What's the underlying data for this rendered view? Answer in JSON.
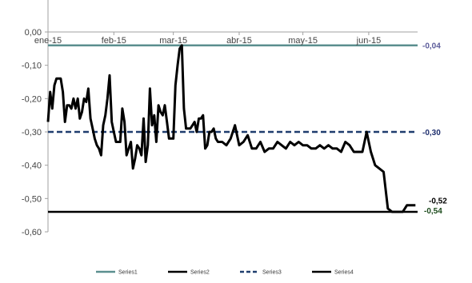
{
  "chart_data": {
    "type": "line",
    "ylim": [
      -0.6,
      0.0
    ],
    "y_ticks": [
      "0,00",
      "-0,10",
      "-0,20",
      "-0,30",
      "-0,40",
      "-0,50",
      "-0,60"
    ],
    "x_ticks": [
      "ene-15",
      "feb-15",
      "mar-15",
      "abr-15",
      "may-15",
      "jun-15"
    ],
    "xlim": [
      0,
      174
    ],
    "grid": false,
    "legend_position": "bottom",
    "series": [
      {
        "name": "Series1",
        "color": "#5b8f8f",
        "style": "solid",
        "x": [
          0,
          174
        ],
        "y": [
          -0.04,
          -0.04
        ]
      },
      {
        "name": "Series2",
        "color": "#000000",
        "style": "solid",
        "x": [
          0,
          174
        ],
        "y": [
          -0.54,
          -0.54
        ]
      },
      {
        "name": "Series3",
        "color": "#1f3d6e",
        "style": "dashed",
        "x": [
          0,
          174
        ],
        "y": [
          -0.3,
          -0.3
        ]
      },
      {
        "name": "Series4",
        "color": "#000000",
        "style": "solid",
        "x": [
          0,
          1,
          2,
          3,
          4,
          5,
          6,
          7,
          8,
          9,
          10,
          11,
          12,
          13,
          14,
          15,
          16,
          17,
          18,
          19,
          20,
          21,
          22,
          23,
          24,
          25,
          26,
          27,
          28,
          29,
          30,
          31,
          32,
          33,
          34,
          35,
          36,
          37,
          38,
          39,
          40,
          41,
          42,
          43,
          44,
          45,
          46,
          47,
          48,
          49,
          50,
          51,
          52,
          53,
          54,
          55,
          56,
          57,
          58,
          59,
          60,
          61,
          62,
          63,
          64,
          65,
          66,
          67,
          68,
          69,
          70,
          71,
          72,
          73,
          74,
          75,
          76,
          77,
          78,
          79,
          80,
          82,
          84,
          86,
          88,
          90,
          92,
          94,
          96,
          98,
          100,
          102,
          104,
          106,
          108,
          110,
          112,
          114,
          116,
          118,
          120,
          122,
          124,
          126,
          128,
          130,
          132,
          134,
          136,
          138,
          140,
          142,
          144,
          146,
          148,
          150,
          152,
          154,
          156,
          158,
          160,
          162,
          164,
          165,
          166,
          167,
          168,
          169,
          170,
          171,
          172,
          173
        ],
        "y": [
          -0.27,
          -0.18,
          -0.23,
          -0.16,
          -0.14,
          -0.14,
          -0.14,
          -0.18,
          -0.27,
          -0.22,
          -0.22,
          -0.23,
          -0.2,
          -0.23,
          -0.2,
          -0.26,
          -0.24,
          -0.2,
          -0.21,
          -0.17,
          -0.26,
          -0.29,
          -0.32,
          -0.34,
          -0.35,
          -0.37,
          -0.28,
          -0.25,
          -0.2,
          -0.13,
          -0.27,
          -0.3,
          -0.33,
          -0.33,
          -0.33,
          -0.23,
          -0.27,
          -0.37,
          -0.35,
          -0.33,
          -0.41,
          -0.38,
          -0.34,
          -0.35,
          -0.37,
          -0.26,
          -0.39,
          -0.34,
          -0.17,
          -0.28,
          -0.25,
          -0.33,
          -0.22,
          -0.24,
          -0.25,
          -0.22,
          -0.27,
          -0.32,
          -0.32,
          -0.32,
          -0.16,
          -0.1,
          -0.05,
          -0.04,
          -0.23,
          -0.29,
          -0.29,
          -0.29,
          -0.28,
          -0.27,
          -0.3,
          -0.26,
          -0.26,
          -0.25,
          -0.35,
          -0.34,
          -0.3,
          -0.3,
          -0.29,
          -0.32,
          -0.33,
          -0.33,
          -0.34,
          -0.32,
          -0.28,
          -0.34,
          -0.33,
          -0.31,
          -0.35,
          -0.35,
          -0.33,
          -0.36,
          -0.35,
          -0.35,
          -0.33,
          -0.34,
          -0.35,
          -0.33,
          -0.34,
          -0.33,
          -0.34,
          -0.34,
          -0.35,
          -0.35,
          -0.34,
          -0.35,
          -0.34,
          -0.35,
          -0.35,
          -0.36,
          -0.33,
          -0.34,
          -0.36,
          -0.36,
          -0.36,
          -0.3,
          -0.36,
          -0.4,
          -0.41,
          -0.42,
          -0.53,
          -0.54,
          -0.54,
          -0.54,
          -0.54,
          -0.54,
          -0.53,
          -0.52,
          -0.52,
          -0.52,
          -0.52,
          -0.52
        ]
      }
    ],
    "end_labels": [
      {
        "text": "-0,04",
        "value": -0.04,
        "color": "#5b5b9a"
      },
      {
        "text": "-0,30",
        "value": -0.3,
        "color": "#1f2f6e"
      },
      {
        "text": "-0,52",
        "value": -0.52,
        "color": "#000000"
      },
      {
        "text": "-0,54",
        "value": -0.54,
        "color": "#1b4a1b"
      }
    ]
  }
}
